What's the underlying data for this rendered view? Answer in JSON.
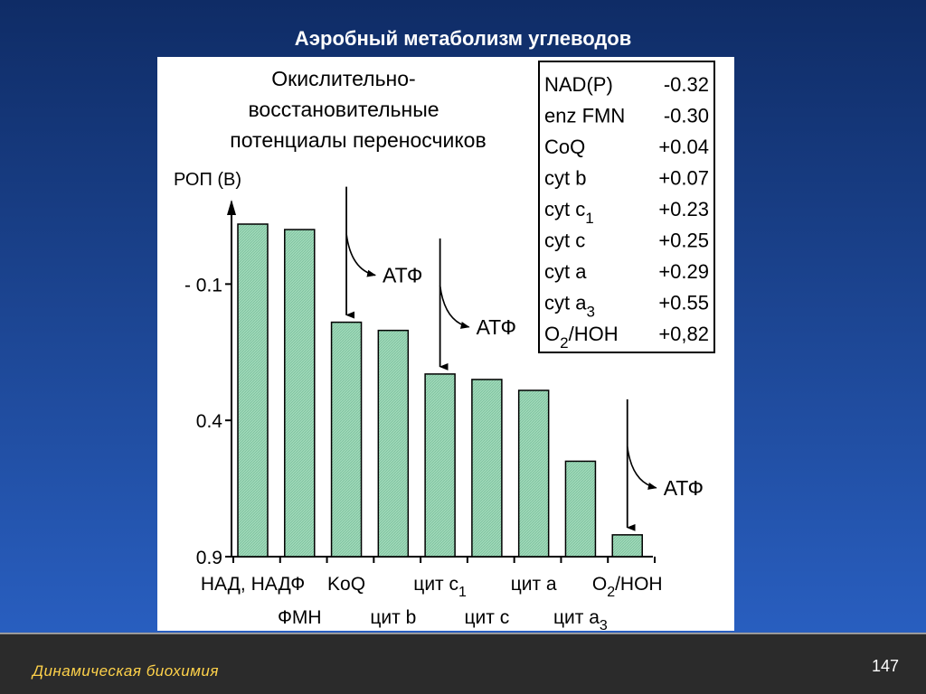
{
  "slide": {
    "title": "Аэробный метаболизм углеводов",
    "footer_left": "Динамическая  биохимия",
    "page_number": "147"
  },
  "colors": {
    "bar_fill": "#9fd8b8",
    "bar_stroke": "#000000",
    "footer_text": "#ffd24a"
  },
  "chart_data": {
    "type": "bar",
    "title_lines": [
      "Окислительно-",
      "восстановительные",
      "потенциалы переносчиков"
    ],
    "ylabel": "РОП (В)",
    "yticks": [
      {
        "value": -0.1,
        "label": "- 0.1"
      },
      {
        "value": 0.4,
        "label": "0.4"
      },
      {
        "value": 0.9,
        "label": "0.9"
      }
    ],
    "ylim": [
      -0.32,
      0.9
    ],
    "y_axis_inverted": true,
    "categories": [
      {
        "label": "НАД, НАДФ",
        "row": 0
      },
      {
        "label": "ФМН",
        "row": 1
      },
      {
        "label": "KoQ",
        "row": 0
      },
      {
        "label": "цит b",
        "row": 1
      },
      {
        "label": "цит c",
        "sub": "1",
        "row": 0
      },
      {
        "label": "цит c",
        "row": 1
      },
      {
        "label": "цит a",
        "row": 0
      },
      {
        "label": "цит a",
        "sub": "3",
        "row": 1
      },
      {
        "label": "O",
        "sub": "2",
        "suffix": "/HOH",
        "row": 0
      }
    ],
    "values": [
      -0.32,
      -0.3,
      0.04,
      0.07,
      0.23,
      0.25,
      0.29,
      0.55,
      0.82
    ],
    "atp_label": "АТФ",
    "atp_sites": [
      {
        "bar_index": 2
      },
      {
        "bar_index": 4
      },
      {
        "bar_index": 8
      }
    ],
    "table": [
      {
        "name": "NAD(P)",
        "value": "-0.32"
      },
      {
        "name": "enz FMN",
        "value": "-0.30"
      },
      {
        "name": "CoQ",
        "value": "+0.04"
      },
      {
        "name": "cyt b",
        "value": "+0.07"
      },
      {
        "name": "cyt c",
        "sub": "1",
        "value": "+0.23"
      },
      {
        "name": "cyt c",
        "value": "+0.25"
      },
      {
        "name": "cyt a",
        "value": "+0.29"
      },
      {
        "name": "cyt a",
        "sub": "3",
        "value": "+0.55"
      },
      {
        "name": "O",
        "sub": "2",
        "suffix": "/HOH",
        "value": "+0,82"
      }
    ]
  }
}
